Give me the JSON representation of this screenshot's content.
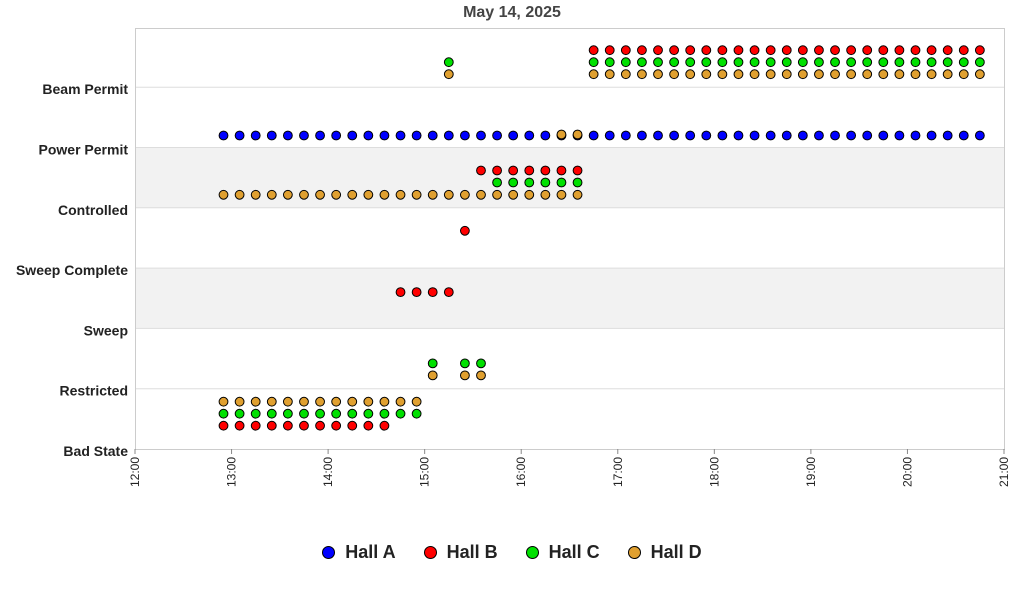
{
  "chart_data": {
    "type": "scatter",
    "title": "May 14, 2025",
    "xlabel": "",
    "ylabel": "",
    "x_ticks": [
      "12:00",
      "13:00",
      "14:00",
      "15:00",
      "16:00",
      "17:00",
      "18:00",
      "19:00",
      "20:00",
      "21:00"
    ],
    "xlim": [
      "12:00",
      "21:00"
    ],
    "categories": [
      "Bad State",
      "Restricted",
      "Sweep",
      "Sweep Complete",
      "Controlled",
      "Power Permit",
      "Beam Permit"
    ],
    "legend_position": "bottom",
    "grid": "alternating horizontal bands",
    "series": [
      {
        "name": "Hall A",
        "color": "#0000ff",
        "points": [
          {
            "from": "12:55",
            "to": "20:45",
            "step_minutes": 10,
            "state": "Power Permit"
          }
        ]
      },
      {
        "name": "Hall B",
        "color": "#ff0000",
        "points": [
          {
            "from": "12:55",
            "to": "14:35",
            "step_minutes": 10,
            "state": "Restricted"
          },
          {
            "from": "14:45",
            "to": "15:15",
            "step_minutes": 10,
            "state": "Sweep Complete"
          },
          {
            "from": "15:25",
            "to": "15:25",
            "step_minutes": 10,
            "state": "Controlled"
          },
          {
            "from": "15:35",
            "to": "16:35",
            "step_minutes": 10,
            "state": "Power Permit"
          },
          {
            "from": "16:45",
            "to": "20:45",
            "step_minutes": 10,
            "state": "Beam Permit"
          }
        ]
      },
      {
        "name": "Hall C",
        "color": "#00e000",
        "points": [
          {
            "from": "12:55",
            "to": "14:55",
            "step_minutes": 10,
            "state": "Restricted"
          },
          {
            "from": "15:05",
            "to": "15:05",
            "step_minutes": 10,
            "state": "Sweep"
          },
          {
            "from": "15:15",
            "to": "15:15",
            "step_minutes": 10,
            "state": "Beam Permit"
          },
          {
            "from": "15:25",
            "to": "15:35",
            "step_minutes": 10,
            "state": "Sweep"
          },
          {
            "from": "15:45",
            "to": "16:35",
            "step_minutes": 10,
            "state": "Power Permit"
          },
          {
            "from": "16:45",
            "to": "20:45",
            "step_minutes": 10,
            "state": "Beam Permit"
          }
        ]
      },
      {
        "name": "Hall D",
        "color": "#e0a030",
        "points": [
          {
            "from": "12:55",
            "to": "14:55",
            "step_minutes": 10,
            "state": "Restricted"
          },
          {
            "from": "12:55",
            "to": "16:35",
            "step_minutes": 10,
            "state": "Controlled"
          },
          {
            "from": "15:05",
            "to": "15:05",
            "step_minutes": 10,
            "state": "Sweep"
          },
          {
            "from": "15:15",
            "to": "15:15",
            "step_minutes": 10,
            "state": "Beam Permit"
          },
          {
            "from": "15:25",
            "to": "15:35",
            "step_minutes": 10,
            "state": "Sweep"
          },
          {
            "from": "16:25",
            "to": "16:35",
            "step_minutes": 10,
            "state": "Power Permit"
          },
          {
            "from": "16:45",
            "to": "20:45",
            "step_minutes": 10,
            "state": "Beam Permit"
          }
        ]
      }
    ]
  }
}
